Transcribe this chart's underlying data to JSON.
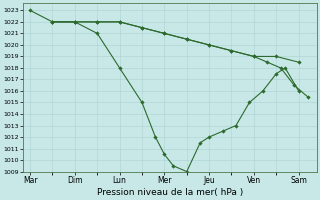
{
  "xlabel": "Pression niveau de la mer( hPa )",
  "x_labels": [
    "Mar",
    "Dim",
    "Lun",
    "Mer",
    "Jeu",
    "Ven",
    "Sam"
  ],
  "background_color": "#c8e8e8",
  "line_color": "#2d6a2d",
  "grid_color": "#b0d4d4",
  "figsize": [
    3.2,
    2.0
  ],
  "dpi": 100,
  "ylim_min": 1009,
  "ylim_max": 1023.6,
  "line1_x": [
    0,
    0.5,
    1.0,
    1.5,
    2.0,
    2.5,
    3.0,
    3.5,
    4.0,
    4.5,
    5.0,
    5.5,
    6.0
  ],
  "line1_y": [
    1023,
    1022,
    1022,
    1022,
    1022,
    1021.5,
    1021,
    1020.5,
    1020,
    1019.5,
    1019,
    1019,
    1018.5
  ],
  "line2_x": [
    0.5,
    1.0,
    1.5,
    2.0,
    2.5,
    2.8,
    3.0,
    3.2,
    3.5,
    3.8,
    4.0,
    4.3,
    4.6,
    4.9,
    5.2,
    5.5,
    5.7,
    6.0
  ],
  "line2_y": [
    1022,
    1022,
    1021,
    1018,
    1015,
    1012,
    1010.5,
    1009.5,
    1009,
    1011.5,
    1012,
    1012.5,
    1013,
    1015,
    1016,
    1017.5,
    1018,
    1016
  ],
  "line3_x": [
    0.5,
    1.0,
    1.5,
    2.0,
    2.5,
    3.0,
    3.5,
    4.0,
    4.5,
    5.0,
    5.3,
    5.6,
    5.9,
    6.2
  ],
  "line3_y": [
    1022,
    1022,
    1022,
    1022,
    1021.5,
    1021,
    1020.5,
    1020,
    1019.5,
    1019,
    1018.5,
    1018,
    1016.5,
    1015.5
  ]
}
